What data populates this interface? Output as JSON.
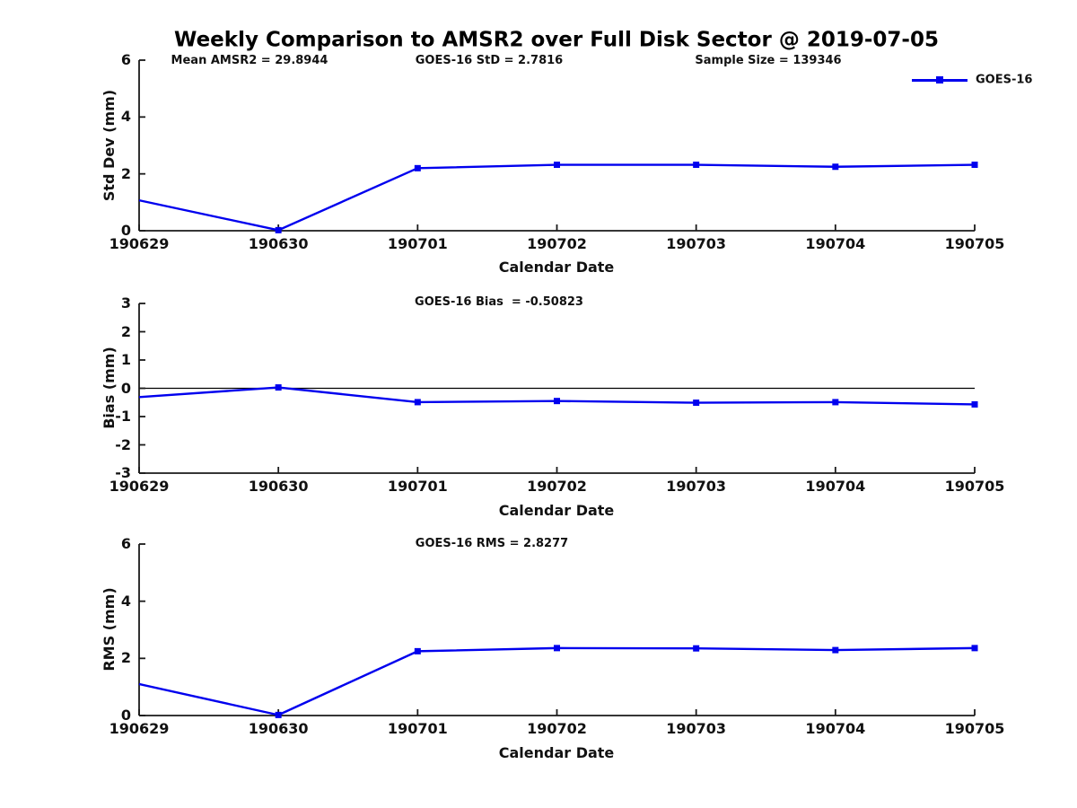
{
  "page": {
    "title": "Weekly Comparison to AMSR2 over Full Disk Sector @ 2019-07-05"
  },
  "legend": {
    "label": "GOES-16",
    "position": "upper right"
  },
  "colors": {
    "line": "#0000EE",
    "axis": "#1a1a1a",
    "text": "#111111",
    "zero_line": "#000000"
  },
  "chart_data": [
    {
      "type": "line",
      "categories": [
        "190629",
        "190630",
        "190701",
        "190702",
        "190703",
        "190704",
        "190705"
      ],
      "series": [
        {
          "name": "GOES-16",
          "marker": "square",
          "values": [
            1.07,
            0.02,
            2.2,
            2.32,
            2.32,
            2.25,
            2.32
          ]
        }
      ],
      "annotations": [
        "Mean AMSR2 = 29.8944",
        "GOES-16 StD = 2.7816",
        "Sample Size = 139346"
      ],
      "xlabel": "Calendar Date",
      "ylabel": "Std Dev (mm)",
      "ylim": [
        0,
        6
      ],
      "yticks": [
        0,
        2,
        4,
        6
      ],
      "zero_line": false,
      "grid": false,
      "legend_position": "upper right"
    },
    {
      "type": "line",
      "categories": [
        "190629",
        "190630",
        "190701",
        "190702",
        "190703",
        "190704",
        "190705"
      ],
      "series": [
        {
          "name": "GOES-16",
          "marker": "square",
          "values": [
            -0.31,
            0.03,
            -0.49,
            -0.45,
            -0.51,
            -0.49,
            -0.57
          ]
        }
      ],
      "annotations": [
        "GOES-16 Bias  = -0.50823"
      ],
      "xlabel": "Calendar Date",
      "ylabel": "Bias (mm)",
      "ylim": [
        -3,
        3
      ],
      "yticks": [
        -3,
        -2,
        -1,
        0,
        1,
        2,
        3
      ],
      "zero_line": true,
      "grid": false
    },
    {
      "type": "line",
      "categories": [
        "190629",
        "190630",
        "190701",
        "190702",
        "190703",
        "190704",
        "190705"
      ],
      "series": [
        {
          "name": "GOES-16",
          "marker": "square",
          "values": [
            1.1,
            0.02,
            2.25,
            2.36,
            2.35,
            2.29,
            2.36
          ]
        }
      ],
      "annotations": [
        "GOES-16 RMS = 2.8277"
      ],
      "xlabel": "Calendar Date",
      "ylabel": "RMS (mm)",
      "ylim": [
        0,
        6
      ],
      "yticks": [
        0,
        2,
        4,
        6
      ],
      "zero_line": false,
      "grid": false
    }
  ]
}
